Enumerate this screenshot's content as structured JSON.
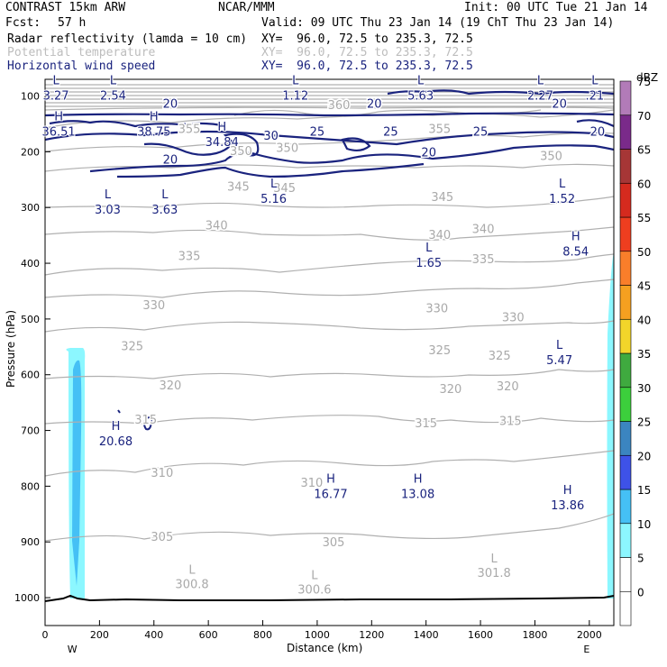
{
  "header": {
    "model": "CONTRAST 15km ARW",
    "center": "NCAR/MMM",
    "init": "Init: 00 UTC Tue 21 Jan 14",
    "fcst_label": "Fcst:",
    "fcst_value": "57 h",
    "valid": "Valid: 09 UTC Thu 23 Jan 14 (19 ChT Thu 23 Jan 14)",
    "fields": [
      {
        "name": "Radar reflectivity (lamda = 10 cm)",
        "xy": "XY=  96.0, 72.5 to 235.3, 72.5",
        "color": "#000000"
      },
      {
        "name": "Potential temperature",
        "xy": "XY=  96.0, 72.5 to 235.3, 72.5",
        "color": "#bdbdbd"
      },
      {
        "name": "Horizontal wind speed",
        "xy": "XY=  96.0, 72.5 to 235.3, 72.5",
        "color": "#1a237e"
      }
    ]
  },
  "chart_data": {
    "type": "contour-cross-section",
    "xlabel": "Distance (km)",
    "ylabel": "Pressure (hPa)",
    "xlim": [
      0,
      2090
    ],
    "ylim": [
      1050,
      70
    ],
    "x_ticks": [
      0,
      200,
      400,
      600,
      800,
      1000,
      1200,
      1400,
      1600,
      1800,
      2000
    ],
    "y_ticks": [
      100,
      200,
      300,
      400,
      500,
      600,
      700,
      800,
      900,
      1000
    ],
    "x_end_labels": {
      "west": "W",
      "east": "E"
    },
    "colorbar": {
      "unit": "dBZ",
      "levels": [
        0,
        5,
        10,
        15,
        20,
        25,
        30,
        35,
        40,
        45,
        50,
        55,
        60,
        65,
        70,
        75
      ],
      "colors": [
        "#ffffff",
        "#ffffff",
        "#8cf7ff",
        "#45c0f5",
        "#3e52e8",
        "#3b85c0",
        "#3ccf3c",
        "#3faa3f",
        "#f2d52a",
        "#f5a020",
        "#f97e2a",
        "#ee3e1f",
        "#d52a1e",
        "#a63636",
        "#7a2a8a",
        "#b27bb8"
      ]
    },
    "theta_contours": [
      {
        "value": 305,
        "labels": [
          {
            "x": 430,
            "p": 890
          },
          {
            "x": 1060,
            "p": 900
          }
        ]
      },
      {
        "value": 310,
        "labels": [
          {
            "x": 430,
            "p": 775
          },
          {
            "x": 980,
            "p": 793
          }
        ]
      },
      {
        "value": 315,
        "labels": [
          {
            "x": 370,
            "p": 680
          },
          {
            "x": 1400,
            "p": 686
          },
          {
            "x": 1710,
            "p": 682
          }
        ]
      },
      {
        "value": 320,
        "labels": [
          {
            "x": 460,
            "p": 618
          },
          {
            "x": 1490,
            "p": 625
          },
          {
            "x": 1700,
            "p": 620
          }
        ]
      },
      {
        "value": 325,
        "labels": [
          {
            "x": 320,
            "p": 548
          },
          {
            "x": 1450,
            "p": 555
          },
          {
            "x": 1670,
            "p": 565
          }
        ]
      },
      {
        "value": 330,
        "labels": [
          {
            "x": 400,
            "p": 474
          },
          {
            "x": 1440,
            "p": 480
          },
          {
            "x": 1720,
            "p": 496
          }
        ]
      },
      {
        "value": 335,
        "labels": [
          {
            "x": 530,
            "p": 386
          },
          {
            "x": 1610,
            "p": 392
          }
        ]
      },
      {
        "value": 340,
        "labels": [
          {
            "x": 630,
            "p": 331
          },
          {
            "x": 1450,
            "p": 348
          },
          {
            "x": 1610,
            "p": 338
          }
        ]
      },
      {
        "value": 345,
        "labels": [
          {
            "x": 710,
            "p": 262
          },
          {
            "x": 880,
            "p": 264
          },
          {
            "x": 1460,
            "p": 280
          }
        ]
      },
      {
        "value": 350,
        "labels": [
          {
            "x": 720,
            "p": 198
          },
          {
            "x": 890,
            "p": 192
          },
          {
            "x": 1860,
            "p": 207
          }
        ]
      },
      {
        "value": 355,
        "labels": [
          {
            "x": 530,
            "p": 158
          },
          {
            "x": 1450,
            "p": 158
          }
        ]
      },
      {
        "value": 360,
        "labels": [
          {
            "x": 1080,
            "p": 115
          }
        ]
      }
    ],
    "theta_extrema": [
      {
        "type": "L",
        "x": 540,
        "p": 970,
        "value": "300.8"
      },
      {
        "type": "L",
        "x": 990,
        "p": 980,
        "value": "300.6"
      },
      {
        "type": "L",
        "x": 1650,
        "p": 950,
        "value": "301.8"
      }
    ],
    "wind_contours": [
      {
        "value": 20,
        "labels": [
          {
            "x": 460,
            "p": 113
          },
          {
            "x": 1210,
            "p": 113
          },
          {
            "x": 1890,
            "p": 113
          },
          {
            "x": 2030,
            "p": 163
          },
          {
            "x": 460,
            "p": 213
          },
          {
            "x": 1410,
            "p": 200
          }
        ]
      },
      {
        "value": 25,
        "labels": [
          {
            "x": 1000,
            "p": 163
          },
          {
            "x": 1270,
            "p": 163
          },
          {
            "x": 1600,
            "p": 163
          }
        ]
      },
      {
        "value": 30,
        "labels": [
          {
            "x": 830,
            "p": 170
          }
        ]
      }
    ],
    "wind_extrema": [
      {
        "type": "L",
        "x": 40,
        "p": 95,
        "value": "3.27"
      },
      {
        "type": "L",
        "x": 250,
        "p": 95,
        "value": "2.54"
      },
      {
        "type": "L",
        "x": 920,
        "p": 95,
        "value": "1.12"
      },
      {
        "type": "L",
        "x": 1380,
        "p": 95,
        "value": "5.63"
      },
      {
        "type": "L",
        "x": 1820,
        "p": 95,
        "value": "2.27"
      },
      {
        "type": "L",
        "x": 2020,
        "p": 95,
        "value": ".21"
      },
      {
        "type": "H",
        "x": 50,
        "p": 160,
        "value": "36.51"
      },
      {
        "type": "H",
        "x": 400,
        "p": 160,
        "value": "38.75"
      },
      {
        "type": "H",
        "x": 650,
        "p": 178,
        "value": "34.84"
      },
      {
        "type": "L",
        "x": 230,
        "p": 300,
        "value": "3.03"
      },
      {
        "type": "L",
        "x": 440,
        "p": 300,
        "value": "3.63"
      },
      {
        "type": "L",
        "x": 840,
        "p": 280,
        "value": "5.16"
      },
      {
        "type": "L",
        "x": 1900,
        "p": 280,
        "value": "1.52"
      },
      {
        "type": "H",
        "x": 1950,
        "p": 375,
        "value": "8.54"
      },
      {
        "type": "L",
        "x": 1410,
        "p": 395,
        "value": "1.65"
      },
      {
        "type": "L",
        "x": 1890,
        "p": 570,
        "value": "5.47"
      },
      {
        "type": "H",
        "x": 260,
        "p": 715,
        "value": "20.68"
      },
      {
        "type": "H",
        "x": 1050,
        "p": 810,
        "value": "16.77"
      },
      {
        "type": "H",
        "x": 1370,
        "p": 810,
        "value": "13.08"
      },
      {
        "type": "H",
        "x": 1920,
        "p": 830,
        "value": "13.86"
      }
    ]
  }
}
